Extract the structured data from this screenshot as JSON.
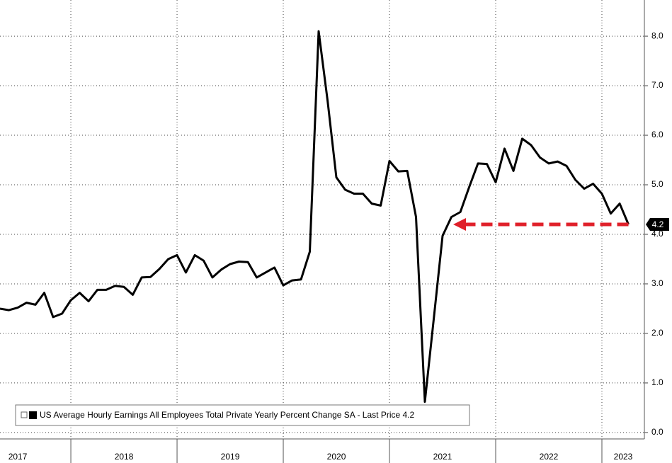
{
  "chart_data": {
    "type": "line",
    "legend": "US Average Hourly Earnings All Employees Total Private Yearly Percent Change SA - Last Price 4.2",
    "x": [
      2017.333,
      2017.417,
      2017.5,
      2017.583,
      2017.667,
      2017.75,
      2017.833,
      2017.917,
      2018.0,
      2018.083,
      2018.167,
      2018.25,
      2018.333,
      2018.417,
      2018.5,
      2018.583,
      2018.667,
      2018.75,
      2018.833,
      2018.917,
      2019.0,
      2019.083,
      2019.167,
      2019.25,
      2019.333,
      2019.417,
      2019.5,
      2019.583,
      2019.667,
      2019.75,
      2019.833,
      2019.917,
      2020.0,
      2020.083,
      2020.167,
      2020.25,
      2020.333,
      2020.417,
      2020.5,
      2020.583,
      2020.667,
      2020.75,
      2020.833,
      2020.917,
      2021.0,
      2021.083,
      2021.167,
      2021.25,
      2021.333,
      2021.417,
      2021.5,
      2021.583,
      2021.667,
      2021.75,
      2021.833,
      2021.917,
      2022.0,
      2022.083,
      2022.167,
      2022.25,
      2022.333,
      2022.417,
      2022.5,
      2022.583,
      2022.667,
      2022.75,
      2022.833,
      2022.917,
      2023.0,
      2023.083,
      2023.167,
      2023.25
    ],
    "series": [
      {
        "name": "US Average Hourly Earnings All Employees Total Private Yearly Percent Change SA",
        "color": "#000000",
        "values": [
          2.5,
          2.47,
          2.52,
          2.62,
          2.58,
          2.82,
          2.33,
          2.4,
          2.67,
          2.82,
          2.65,
          2.88,
          2.88,
          2.96,
          2.94,
          2.78,
          3.13,
          3.14,
          3.3,
          3.5,
          3.58,
          3.23,
          3.58,
          3.47,
          3.13,
          3.29,
          3.4,
          3.45,
          3.44,
          3.13,
          3.23,
          3.33,
          2.97,
          3.07,
          3.09,
          3.65,
          8.1,
          6.7,
          5.15,
          4.9,
          4.82,
          4.82,
          4.62,
          4.58,
          5.48,
          5.27,
          5.28,
          4.35,
          0.62,
          2.3,
          3.97,
          4.35,
          4.45,
          4.95,
          5.43,
          5.42,
          5.05,
          5.73,
          5.28,
          5.93,
          5.8,
          5.55,
          5.43,
          5.47,
          5.38,
          5.1,
          4.92,
          5.02,
          4.82,
          4.42,
          4.62,
          4.2
        ]
      }
    ],
    "last_value_label": "4.2",
    "arrow": {
      "from_x": 2023.25,
      "to_x": 2021.6,
      "y": 4.2,
      "color": "#e0202a"
    },
    "xlim": [
      2017.333,
      2023.4
    ],
    "xticks": [
      {
        "value": 2017.5,
        "label": "2017"
      },
      {
        "value": 2018.5,
        "label": "2018"
      },
      {
        "value": 2019.5,
        "label": "2019"
      },
      {
        "value": 2020.5,
        "label": "2020"
      },
      {
        "value": 2021.5,
        "label": "2021"
      },
      {
        "value": 2022.5,
        "label": "2022"
      },
      {
        "value": 2023.2,
        "label": "2023"
      }
    ],
    "xgrid": [
      2018,
      2019,
      2020,
      2021,
      2022,
      2023
    ],
    "ylim": [
      -0.13,
      8.73
    ],
    "yticks": [
      {
        "value": 0,
        "label": "0.0"
      },
      {
        "value": 1,
        "label": "1.0"
      },
      {
        "value": 2,
        "label": "2.0"
      },
      {
        "value": 3,
        "label": "3.0"
      },
      {
        "value": 4,
        "label": "4.0"
      },
      {
        "value": 5,
        "label": "5.0"
      },
      {
        "value": 6,
        "label": "6.0"
      },
      {
        "value": 7,
        "label": "7.0"
      },
      {
        "value": 8,
        "label": "8.0"
      }
    ],
    "grid": true
  }
}
